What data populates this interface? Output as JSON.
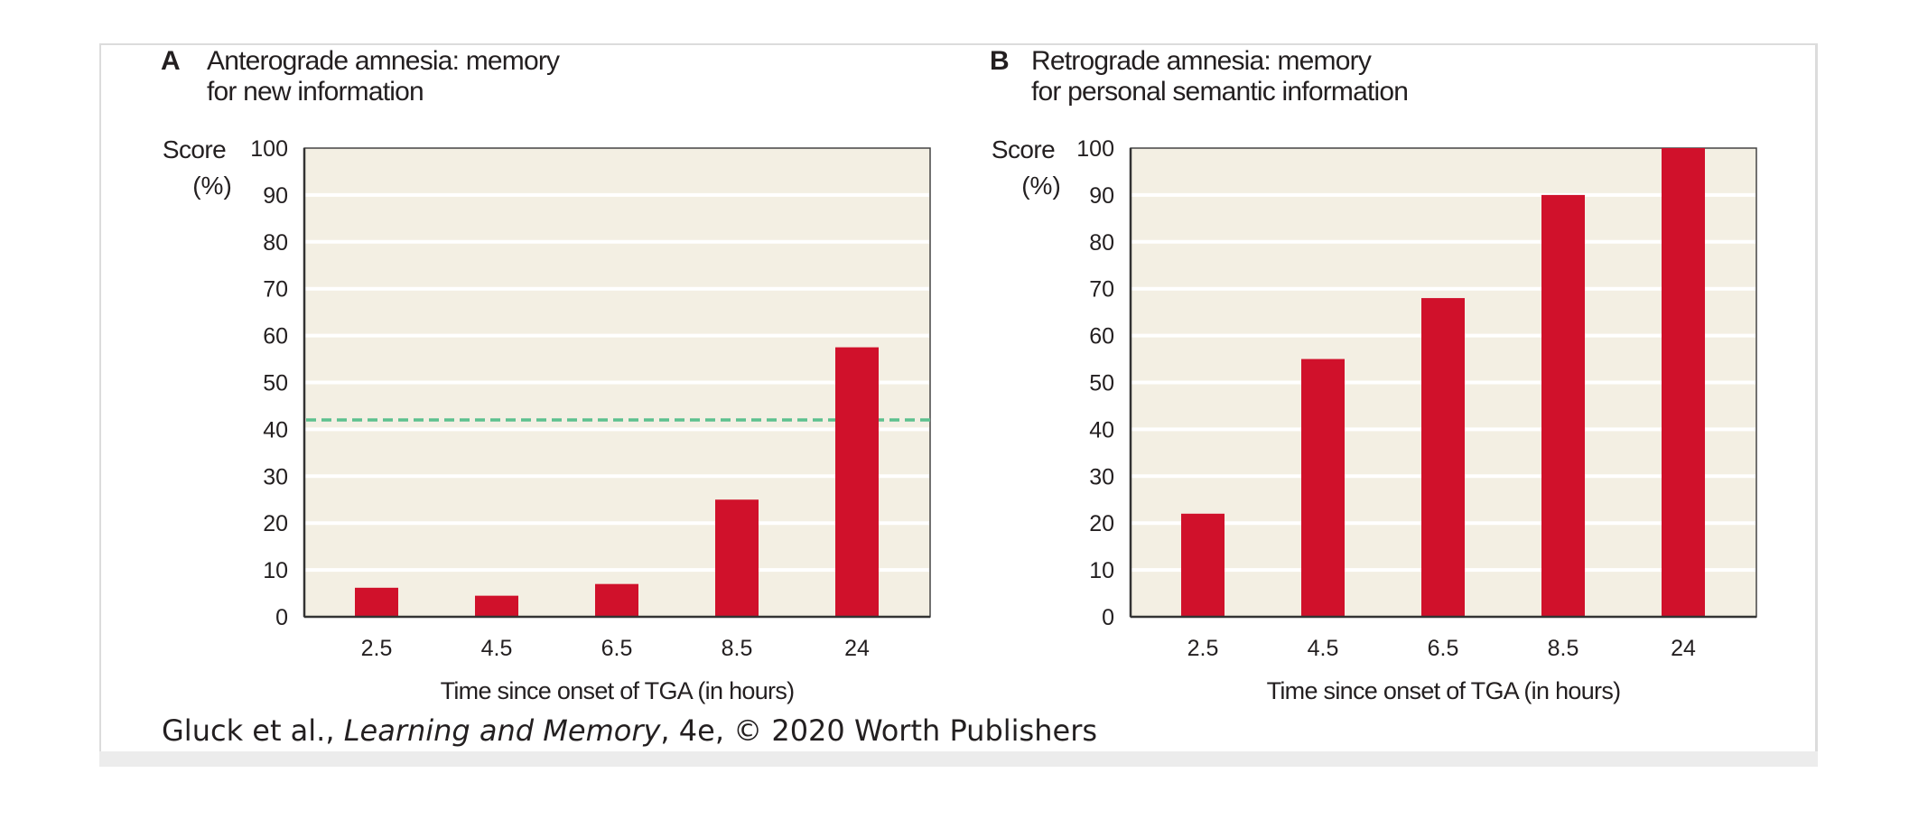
{
  "credit": {
    "prefix": "Gluck et al., ",
    "title": "Learning and Memory",
    "suffix": ", 4e, © 2020 Worth Publishers"
  },
  "colors": {
    "bar": "#d0112b",
    "plot_bg": "#f3efe3",
    "grid": "#ffffff",
    "reference_line": "#5cc08e",
    "axis": "#333333"
  },
  "chart_data": [
    {
      "type": "bar",
      "panel": "A",
      "title_lines": [
        "Anterograde amnesia: memory",
        "for new information"
      ],
      "ylabel_lines": [
        "Score",
        "(%)"
      ],
      "xlabel": "Time since onset of TGA (in hours)",
      "categories": [
        "2.5",
        "4.5",
        "6.5",
        "8.5",
        "24"
      ],
      "values": [
        6.2,
        4.5,
        7,
        25,
        57.5
      ],
      "ylim": [
        0,
        100
      ],
      "yticks": [
        "0",
        "10",
        "20",
        "30",
        "40",
        "50",
        "60",
        "70",
        "80",
        "90",
        "100"
      ],
      "grid": true,
      "reference_line": {
        "value": 42,
        "style": "dashed"
      }
    },
    {
      "type": "bar",
      "panel": "B",
      "title_lines": [
        "Retrograde amnesia: memory",
        "for personal semantic information"
      ],
      "ylabel_lines": [
        "Score",
        "(%)"
      ],
      "xlabel": "Time since onset of TGA (in hours)",
      "categories": [
        "2.5",
        "4.5",
        "6.5",
        "8.5",
        "24"
      ],
      "values": [
        22,
        55,
        68,
        90,
        100
      ],
      "ylim": [
        0,
        100
      ],
      "yticks": [
        "0",
        "10",
        "20",
        "30",
        "40",
        "50",
        "60",
        "70",
        "80",
        "90",
        "100"
      ],
      "grid": true
    }
  ]
}
